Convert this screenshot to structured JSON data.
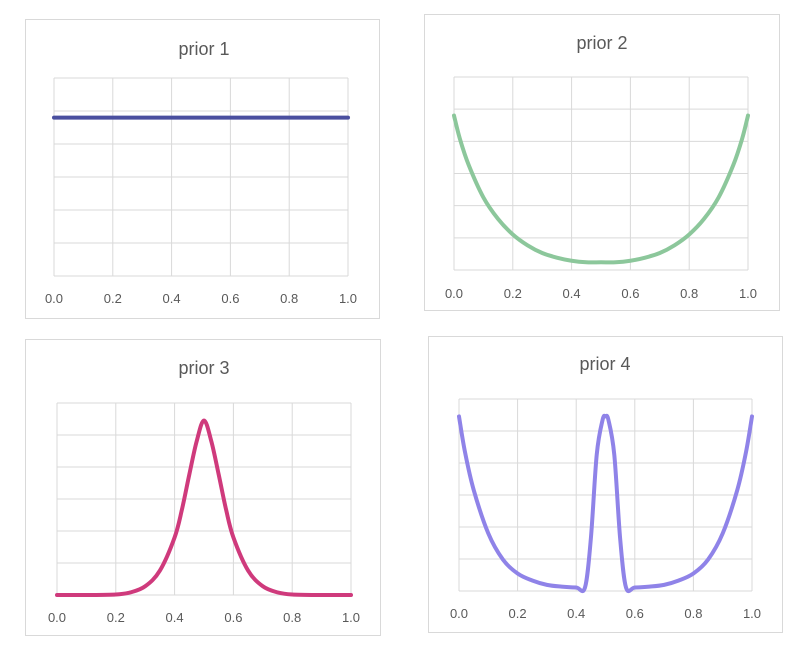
{
  "chart_data": [
    {
      "type": "line",
      "title": "prior 1",
      "xlabel": "",
      "ylabel": "",
      "x_ticks": [
        "0.0",
        "0.2",
        "0.4",
        "0.6",
        "0.8",
        "1.0"
      ],
      "xlim": [
        0,
        1
      ],
      "ylim": [
        0,
        1.25
      ],
      "y_tick_labels_shown": false,
      "grid": true,
      "color": "#4a4f9f",
      "series": [
        {
          "x": [
            0,
            1
          ],
          "y": [
            1,
            1
          ]
        }
      ]
    },
    {
      "type": "line",
      "title": "prior 2",
      "xlabel": "",
      "ylabel": "",
      "x_ticks": [
        "0.0",
        "0.2",
        "0.4",
        "0.6",
        "0.8",
        "1.0"
      ],
      "xlim": [
        0,
        1
      ],
      "ylim": [
        0,
        1.25
      ],
      "y_tick_labels_shown": false,
      "grid": true,
      "color": "#8cc79b",
      "series": [
        {
          "x": [
            0,
            0.02,
            0.05,
            0.1,
            0.15,
            0.2,
            0.25,
            0.3,
            0.35,
            0.4,
            0.45,
            0.5,
            0.55,
            0.6,
            0.65,
            0.7,
            0.75,
            0.8,
            0.85,
            0.9,
            0.95,
            0.98,
            1
          ],
          "y": [
            1.0,
            0.85,
            0.68,
            0.47,
            0.33,
            0.23,
            0.16,
            0.11,
            0.08,
            0.06,
            0.05,
            0.05,
            0.05,
            0.06,
            0.08,
            0.11,
            0.16,
            0.23,
            0.33,
            0.47,
            0.68,
            0.85,
            1.0
          ]
        }
      ]
    },
    {
      "type": "line",
      "title": "prior 3",
      "xlabel": "",
      "ylabel": "",
      "x_ticks": [
        "0.0",
        "0.2",
        "0.4",
        "0.6",
        "0.8",
        "1.0"
      ],
      "xlim": [
        0,
        1
      ],
      "ylim": [
        0,
        1.1
      ],
      "y_tick_labels_shown": false,
      "grid": true,
      "color": "#cf3a7c",
      "series": [
        {
          "x": [
            0,
            0.1,
            0.2,
            0.25,
            0.3,
            0.35,
            0.4,
            0.425,
            0.45,
            0.475,
            0.5,
            0.525,
            0.55,
            0.575,
            0.6,
            0.65,
            0.7,
            0.75,
            0.8,
            0.9,
            1
          ],
          "y": [
            0,
            0,
            0.003,
            0.015,
            0.05,
            0.14,
            0.33,
            0.49,
            0.69,
            0.88,
            1.0,
            0.88,
            0.69,
            0.49,
            0.33,
            0.14,
            0.05,
            0.015,
            0.003,
            0,
            0
          ]
        }
      ]
    },
    {
      "type": "line",
      "title": "prior 4",
      "xlabel": "",
      "ylabel": "",
      "x_ticks": [
        "0.0",
        "0.2",
        "0.4",
        "0.6",
        "0.8",
        "1.0"
      ],
      "xlim": [
        0,
        1
      ],
      "ylim": [
        0,
        1.1
      ],
      "y_tick_labels_shown": false,
      "grid": true,
      "color": "#8f83e8",
      "series": [
        {
          "x": [
            0,
            0.02,
            0.05,
            0.1,
            0.15,
            0.2,
            0.25,
            0.3,
            0.35,
            0.4,
            0.43,
            0.45,
            0.47,
            0.49,
            0.5,
            0.51,
            0.53,
            0.55,
            0.57,
            0.6,
            0.65,
            0.7,
            0.75,
            0.8,
            0.85,
            0.9,
            0.95,
            0.98,
            1
          ],
          "y": [
            1.0,
            0.8,
            0.58,
            0.33,
            0.18,
            0.1,
            0.06,
            0.035,
            0.025,
            0.02,
            0.02,
            0.3,
            0.78,
            0.98,
            1.0,
            0.98,
            0.78,
            0.3,
            0.02,
            0.02,
            0.025,
            0.035,
            0.06,
            0.1,
            0.18,
            0.33,
            0.58,
            0.8,
            1.0
          ]
        }
      ]
    }
  ]
}
